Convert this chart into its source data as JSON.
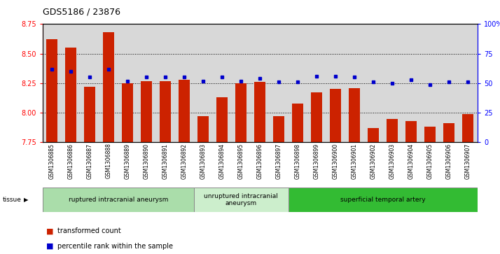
{
  "title": "GDS5186 / 23876",
  "samples": [
    "GSM1306885",
    "GSM1306886",
    "GSM1306887",
    "GSM1306888",
    "GSM1306889",
    "GSM1306890",
    "GSM1306891",
    "GSM1306892",
    "GSM1306893",
    "GSM1306894",
    "GSM1306895",
    "GSM1306896",
    "GSM1306897",
    "GSM1306898",
    "GSM1306899",
    "GSM1306900",
    "GSM1306901",
    "GSM1306902",
    "GSM1306903",
    "GSM1306904",
    "GSM1306905",
    "GSM1306906",
    "GSM1306907"
  ],
  "bar_values": [
    8.62,
    8.55,
    8.22,
    8.68,
    8.25,
    8.27,
    8.27,
    8.28,
    7.97,
    8.13,
    8.25,
    8.26,
    7.97,
    8.08,
    8.17,
    8.2,
    8.21,
    7.87,
    7.95,
    7.93,
    7.88,
    7.91,
    7.99
  ],
  "percentile_values": [
    62,
    60,
    55,
    62,
    52,
    55,
    55,
    55,
    52,
    55,
    52,
    54,
    51,
    51,
    56,
    56,
    55,
    51,
    50,
    53,
    49,
    51,
    51
  ],
  "ylim_left": [
    7.75,
    8.75
  ],
  "ylim_right": [
    0,
    100
  ],
  "yticks_left": [
    7.75,
    8.0,
    8.25,
    8.5,
    8.75
  ],
  "yticks_right": [
    0,
    25,
    50,
    75,
    100
  ],
  "bar_color": "#cc2200",
  "dot_color": "#0000cc",
  "bg_color": "#d8d8d8",
  "grid_lines": [
    8.0,
    8.25,
    8.5
  ],
  "groups": [
    {
      "label": "ruptured intracranial aneurysm",
      "start": 0,
      "end": 8,
      "color": "#aaddaa"
    },
    {
      "label": "unruptured intracranial\naneurysm",
      "start": 8,
      "end": 13,
      "color": "#cceecc"
    },
    {
      "label": "superficial temporal artery",
      "start": 13,
      "end": 23,
      "color": "#33bb33"
    }
  ],
  "legend_bar_label": "transformed count",
  "legend_dot_label": "percentile rank within the sample",
  "tissue_label": "tissue"
}
